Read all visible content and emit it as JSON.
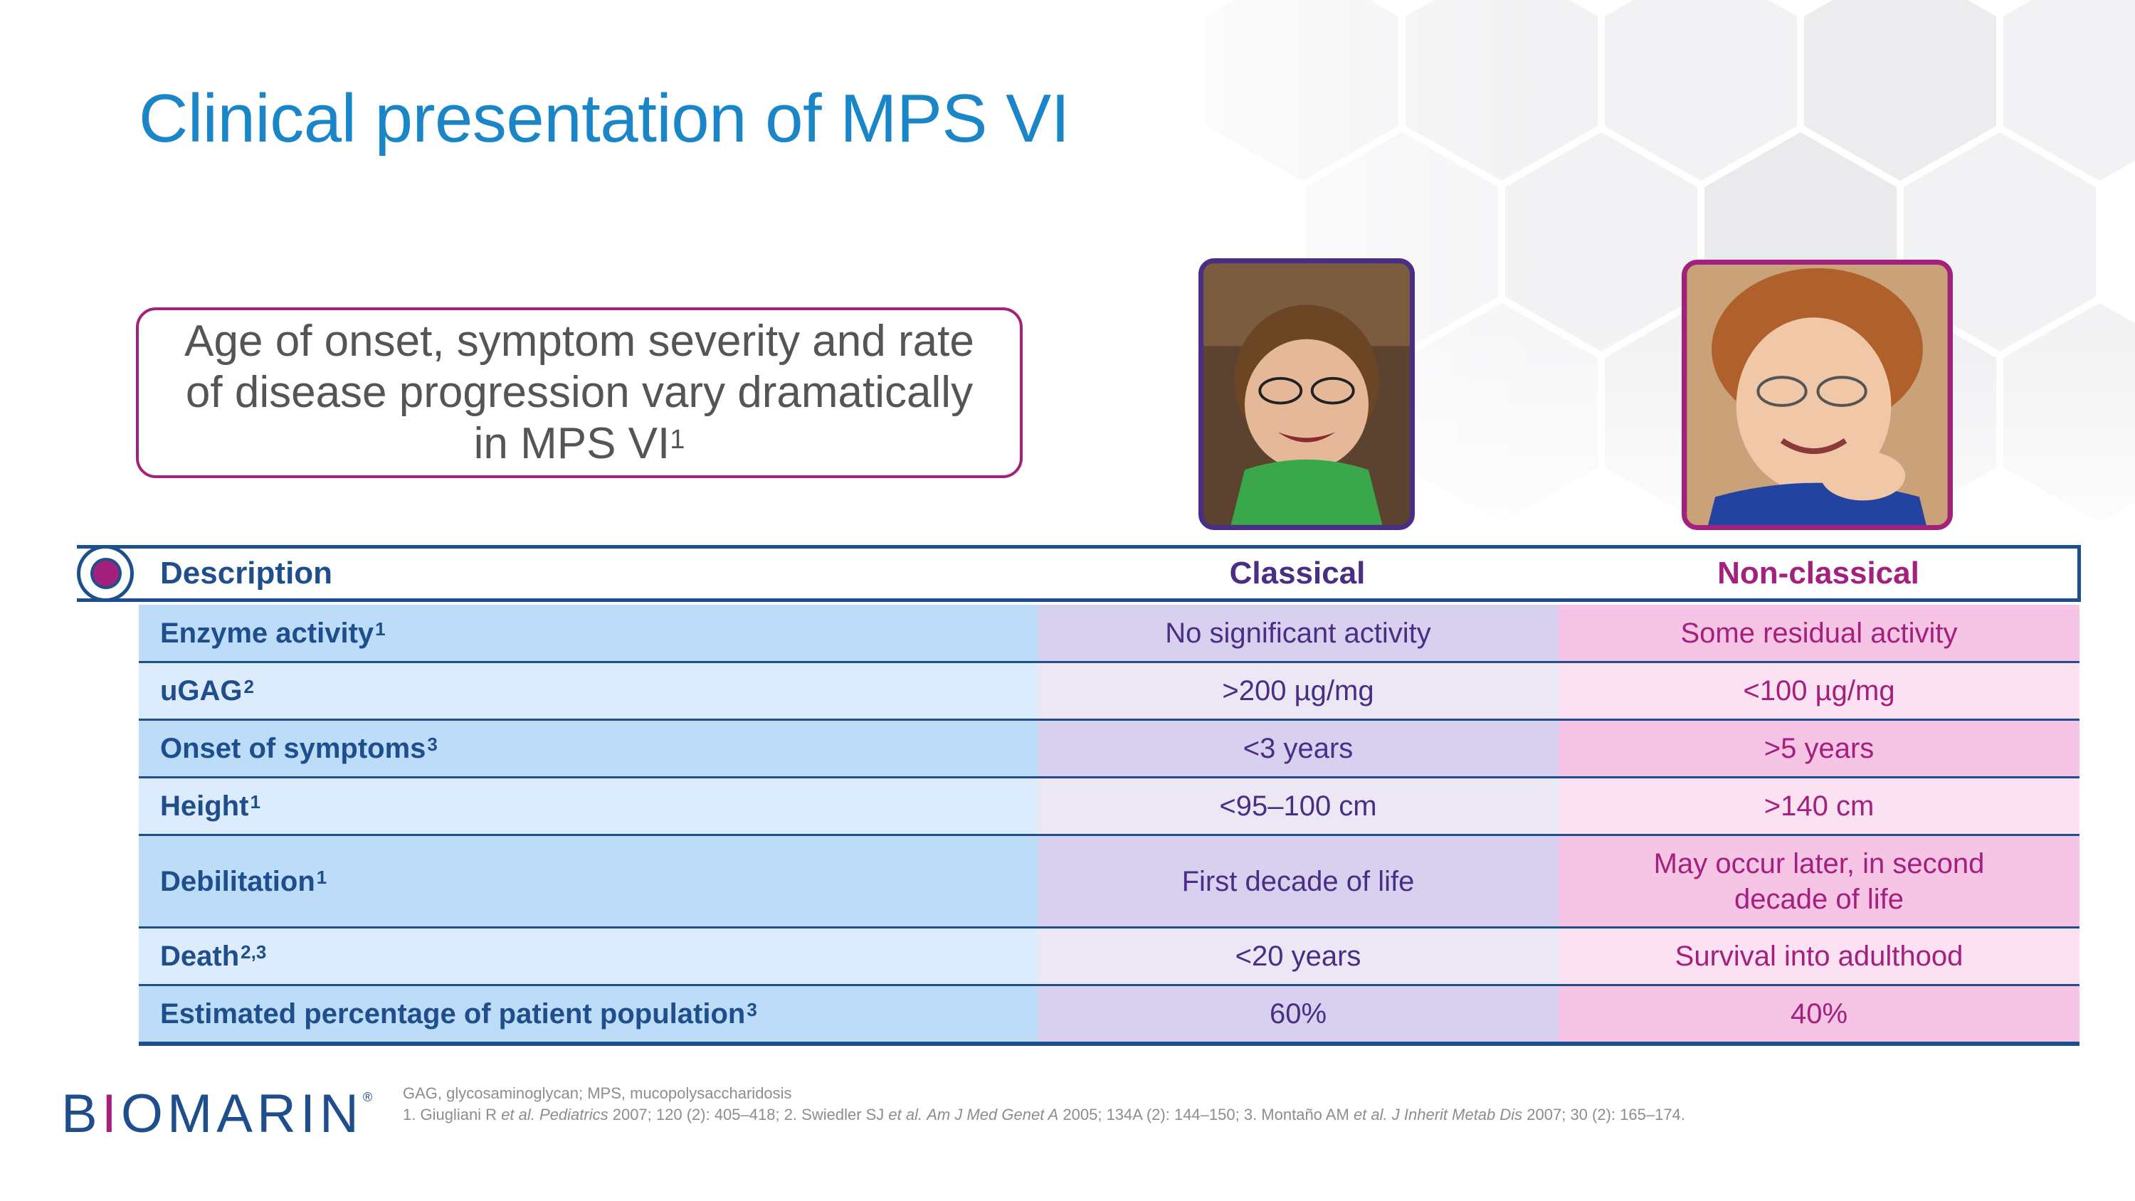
{
  "slide": {
    "title": "Clinical presentation of MPS VI",
    "callout_text": "Age of onset, symptom severity and rate of disease progression vary dramatically in MPS VI",
    "callout_sup": "1"
  },
  "photos": {
    "classical": {
      "description": "photo-classical-patient"
    },
    "nonclassical": {
      "description": "photo-nonclassical-patient"
    }
  },
  "table": {
    "headers": {
      "description": "Description",
      "classical": "Classical",
      "nonclassical": "Non-classical"
    },
    "rows": [
      {
        "label": "Enzyme activity",
        "sup": "1",
        "classical": "No significant activity",
        "nonclassical": "Some residual activity"
      },
      {
        "label": "uGAG",
        "sup": "2",
        "classical": ">200 µg/mg",
        "nonclassical": "<100 µg/mg"
      },
      {
        "label": "Onset of symptoms",
        "sup": "3",
        "classical": "<3 years",
        "nonclassical": ">5 years"
      },
      {
        "label": "Height",
        "sup": "1",
        "classical": "<95–100 cm",
        "nonclassical": ">140 cm"
      },
      {
        "label": "Debilitation",
        "sup": "1",
        "classical": "First decade of life",
        "nonclassical": "May occur later, in second decade of life"
      },
      {
        "label": "Death",
        "sup": "2,3",
        "classical": "<20 years",
        "nonclassical": "Survival into adulthood"
      },
      {
        "label": "Estimated percentage of patient population",
        "sup": "3",
        "classical": "60%",
        "nonclassical": "40%"
      }
    ]
  },
  "logo": {
    "b": "B",
    "i": "I",
    "rest": "OMARIN",
    "reg": "®"
  },
  "footnotes": {
    "abbrev": "GAG, glycosaminoglycan; MPS, mucopolysaccharidosis",
    "ref1_a": "1. Giugliani R ",
    "etal": "et al.",
    "ref1_journal": "Pediatrics",
    "ref1_b": " 2007; 120 (2): 405–418; 2. Swiedler SJ ",
    "ref2_journal": "Am J Med Genet A",
    "ref2_b": " 2005; 134A (2): 144–150; 3. Montaño AM ",
    "ref3_journal": "J Inherit Metab Dis",
    "ref3_b": " 2007; 30 (2): 165–174."
  },
  "colors": {
    "title": "#1a86c8",
    "navy": "#1e4e8c",
    "purple": "#4a2e85",
    "magenta": "#a3207c"
  }
}
